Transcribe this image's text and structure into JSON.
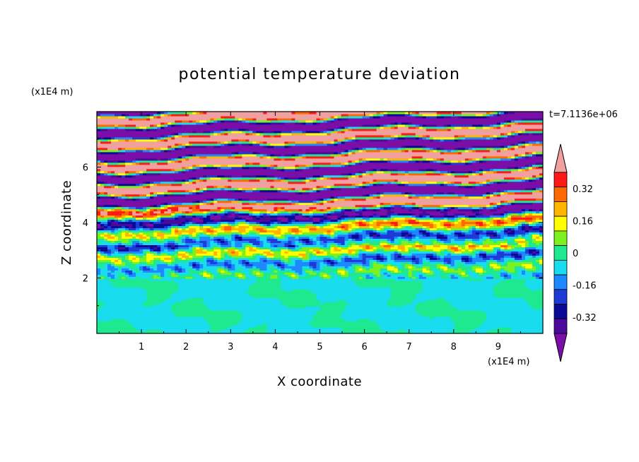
{
  "chart_data": {
    "type": "heatmap",
    "title": "potential temperature deviation",
    "xlabel": "X coordinate",
    "ylabel": "Z coordinate",
    "x_unit": "(x1E4 m)",
    "y_unit": "(x1E4 m)",
    "time_label": "t=7.1136e+06",
    "xlim": [
      0,
      10
    ],
    "ylim": [
      0,
      8
    ],
    "x_ticks": [
      "1",
      "2",
      "3",
      "4",
      "5",
      "6",
      "7",
      "8",
      "9"
    ],
    "y_ticks": [
      "2",
      "4",
      "6"
    ],
    "colorbar": {
      "levels": [
        -0.48,
        -0.4,
        -0.32,
        -0.24,
        -0.16,
        -0.08,
        0,
        0.08,
        0.16,
        0.24,
        0.32,
        0.4,
        0.48
      ],
      "colors": [
        "#7a0ea6",
        "#4b0a9c",
        "#0a0a96",
        "#1f3bd6",
        "#1e88ff",
        "#19dcee",
        "#1ee890",
        "#7cf020",
        "#ffff00",
        "#ffb400",
        "#ff6a00",
        "#ff1a1a",
        "#f0a0a0"
      ],
      "tick_labels": [
        "0.32",
        "0.16",
        "0",
        "-0.16",
        "-0.32"
      ],
      "tick_values": [
        0.32,
        0.16,
        0,
        -0.16,
        -0.32
      ]
    }
  }
}
